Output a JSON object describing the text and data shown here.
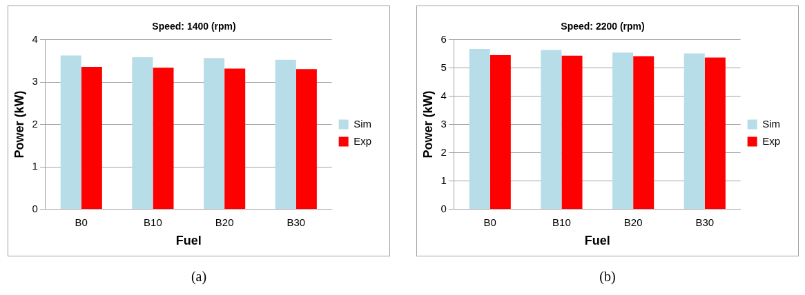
{
  "chart_data": [
    {
      "type": "bar",
      "title": "Speed: 1400 (rpm)",
      "xlabel": "Fuel",
      "ylabel": "Power (kW)",
      "categories": [
        "B0",
        "B10",
        "B20",
        "B30"
      ],
      "series": [
        {
          "name": "Sim",
          "color": "#b7dde8",
          "values": [
            3.63,
            3.59,
            3.57,
            3.53
          ]
        },
        {
          "name": "Exp",
          "color": "#ff0000",
          "values": [
            3.36,
            3.34,
            3.32,
            3.31
          ]
        }
      ],
      "ylim": [
        0,
        4
      ],
      "yticks": [
        0,
        1,
        2,
        3,
        4
      ],
      "grid": "y",
      "legend": "right",
      "annotations": [
        "(a)"
      ]
    },
    {
      "type": "bar",
      "title": "Speed: 2200 (rpm)",
      "xlabel": "Fuel",
      "ylabel": "Power (kW)",
      "categories": [
        "B0",
        "B10",
        "B20",
        "B30"
      ],
      "series": [
        {
          "name": "Sim",
          "color": "#b7dde8",
          "values": [
            5.68,
            5.64,
            5.55,
            5.52
          ]
        },
        {
          "name": "Exp",
          "color": "#ff0000",
          "values": [
            5.46,
            5.44,
            5.42,
            5.37
          ]
        }
      ],
      "ylim": [
        0,
        6
      ],
      "yticks": [
        0,
        1,
        2,
        3,
        4,
        5,
        6
      ],
      "grid": "y",
      "legend": "right",
      "annotations": [
        "(b)"
      ]
    }
  ]
}
